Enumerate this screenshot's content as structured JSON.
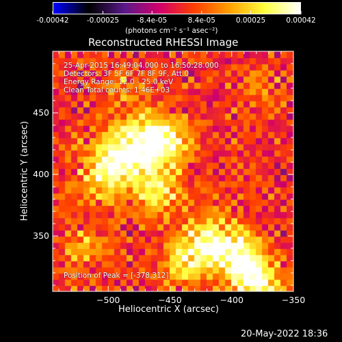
{
  "colorbar": {
    "tick_labels": [
      "-0.00042",
      "-0.00025",
      "-8.4e-05",
      "8.4e-05",
      "0.00025",
      "0.00042"
    ],
    "units": "(photons cm⁻² s⁻¹ asec⁻²)"
  },
  "chart_data": {
    "type": "heatmap",
    "title": "Reconstructed RHESSI Image",
    "xlabel": "Heliocentric X (arcsec)",
    "ylabel": "Heliocentric Y (arcsec)",
    "xlim": [
      -545,
      -350
    ],
    "ylim": [
      305,
      500
    ],
    "x_ticks": [
      -500,
      -450,
      -400,
      -350
    ],
    "x_tick_labels": [
      "−500",
      "−450",
      "−400",
      "−350"
    ],
    "y_ticks": [
      350,
      400,
      450
    ],
    "y_tick_labels": [
      "350",
      "400",
      "450"
    ],
    "zlim": [
      -0.00042,
      0.00042
    ],
    "peak": [
      -378,
      312
    ],
    "colormap": [
      "#0000ff",
      "#000000",
      "#5a1a8a",
      "#d2006e",
      "#ff4000",
      "#ffa000",
      "#ffff40",
      "#ffffff"
    ],
    "bright_regions": [
      {
        "x": -480,
        "y": 420,
        "sigma": 18,
        "amp": 0.00038
      },
      {
        "x": -455,
        "y": 428,
        "sigma": 14,
        "amp": 0.00033
      },
      {
        "x": -505,
        "y": 400,
        "sigma": 14,
        "amp": 0.00026
      },
      {
        "x": -460,
        "y": 385,
        "sigma": 14,
        "amp": 0.00024
      },
      {
        "x": -420,
        "y": 345,
        "sigma": 16,
        "amp": 0.00032
      },
      {
        "x": -395,
        "y": 335,
        "sigma": 14,
        "amp": 0.0003
      },
      {
        "x": -378,
        "y": 312,
        "sigma": 14,
        "amp": 0.00036
      },
      {
        "x": -440,
        "y": 325,
        "sigma": 12,
        "amp": 0.0002
      },
      {
        "x": -520,
        "y": 340,
        "sigma": 12,
        "amp": 0.00018
      },
      {
        "x": -488,
        "y": 470,
        "sigma": 10,
        "amp": 0.00014
      },
      {
        "x": -380,
        "y": 470,
        "sigma": 10,
        "amp": 0.00014
      }
    ],
    "annotations": [
      "25-Apr-2015 16:49:04.000 to 16:50:28.000",
      "Detectors: 3F 5F 6F 7F 8F 9F, Att 0",
      "Energy Range: 12.0 - 25.0 keV",
      "Clean      Total counts: 1.46E+03"
    ],
    "peak_label": "Position of Peak = [-378,312]"
  },
  "timestamp": "20-May-2022 18:36"
}
